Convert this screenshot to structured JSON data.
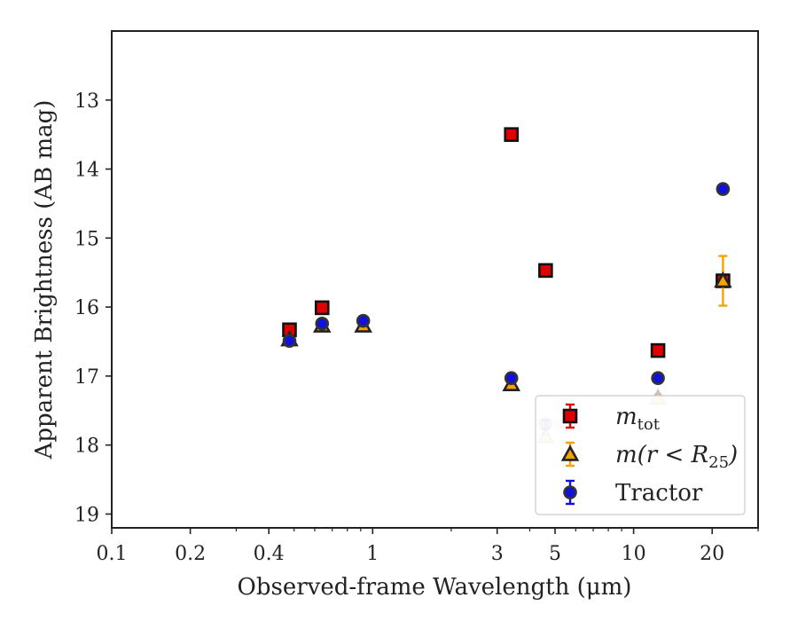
{
  "chart_data": {
    "type": "scatter",
    "xlabel": "Observed-frame Wavelength (μm)",
    "ylabel": "Apparent Brightness (AB mag)",
    "x_scale": "log",
    "xlim": [
      0.1,
      30
    ],
    "ylim": [
      19.2,
      12.0
    ],
    "y_inverted": true,
    "x_ticks": [
      {
        "value": 0.1,
        "label": "0.1"
      },
      {
        "value": 0.2,
        "label": "0.2"
      },
      {
        "value": 0.4,
        "label": "0.4"
      },
      {
        "value": 1,
        "label": "1"
      },
      {
        "value": 3,
        "label": "3"
      },
      {
        "value": 5,
        "label": "5"
      },
      {
        "value": 10,
        "label": "10"
      },
      {
        "value": 20,
        "label": "20"
      }
    ],
    "y_ticks": [
      {
        "value": 13,
        "label": "13"
      },
      {
        "value": 14,
        "label": "14"
      },
      {
        "value": 15,
        "label": "15"
      },
      {
        "value": 16,
        "label": "16"
      },
      {
        "value": 17,
        "label": "17"
      },
      {
        "value": 18,
        "label": "18"
      },
      {
        "value": 19,
        "label": "19"
      }
    ],
    "grid": false,
    "legend_position": "bottom-right",
    "series": [
      {
        "name": "m_tot",
        "legend_label_main": "m",
        "legend_label_sub": "tot",
        "marker": "square",
        "fill": "#e00000",
        "edge": "#111111",
        "points": [
          {
            "x": 0.48,
            "y": 16.33,
            "err": 0.03
          },
          {
            "x": 0.64,
            "y": 16.01,
            "err": 0.03
          },
          {
            "x": 3.4,
            "y": 13.5,
            "err": 0.03
          },
          {
            "x": 4.6,
            "y": 15.47,
            "err": 0.03
          },
          {
            "x": 12.4,
            "y": 16.63,
            "err": 0.03
          },
          {
            "x": 22.0,
            "y": 15.62,
            "err": 0.03
          }
        ]
      },
      {
        "name": "m(r < R_25)",
        "legend_label_main": "m(r < R",
        "legend_label_sub": "25",
        "legend_label_tail": ")",
        "marker": "triangle",
        "fill": "#f5a300",
        "edge": "#222222",
        "points": [
          {
            "x": 0.48,
            "y": 16.47,
            "err": 0.03
          },
          {
            "x": 0.64,
            "y": 16.27,
            "err": 0.03
          },
          {
            "x": 0.92,
            "y": 16.27,
            "err": 0.03
          },
          {
            "x": 3.4,
            "y": 17.12,
            "err": 0.04
          },
          {
            "x": 4.6,
            "y": 17.88,
            "err": 0.04
          },
          {
            "x": 12.4,
            "y": 17.32,
            "err": 0.05
          },
          {
            "x": 22.0,
            "y": 15.62,
            "err": 0.36
          }
        ]
      },
      {
        "name": "Tractor",
        "legend_label_main": "Tractor",
        "marker": "circle",
        "fill": "#1010e0",
        "edge": "#333333",
        "points": [
          {
            "x": 0.48,
            "y": 16.49,
            "err": 0.03
          },
          {
            "x": 0.64,
            "y": 16.24,
            "err": 0.03
          },
          {
            "x": 0.92,
            "y": 16.2,
            "err": 0.04
          },
          {
            "x": 3.4,
            "y": 17.03,
            "err": 0.06
          },
          {
            "x": 4.6,
            "y": 17.7,
            "err": 0.06
          },
          {
            "x": 12.4,
            "y": 17.03,
            "err": 0.06
          },
          {
            "x": 22.0,
            "y": 14.29,
            "err": 0.06
          }
        ]
      }
    ]
  }
}
